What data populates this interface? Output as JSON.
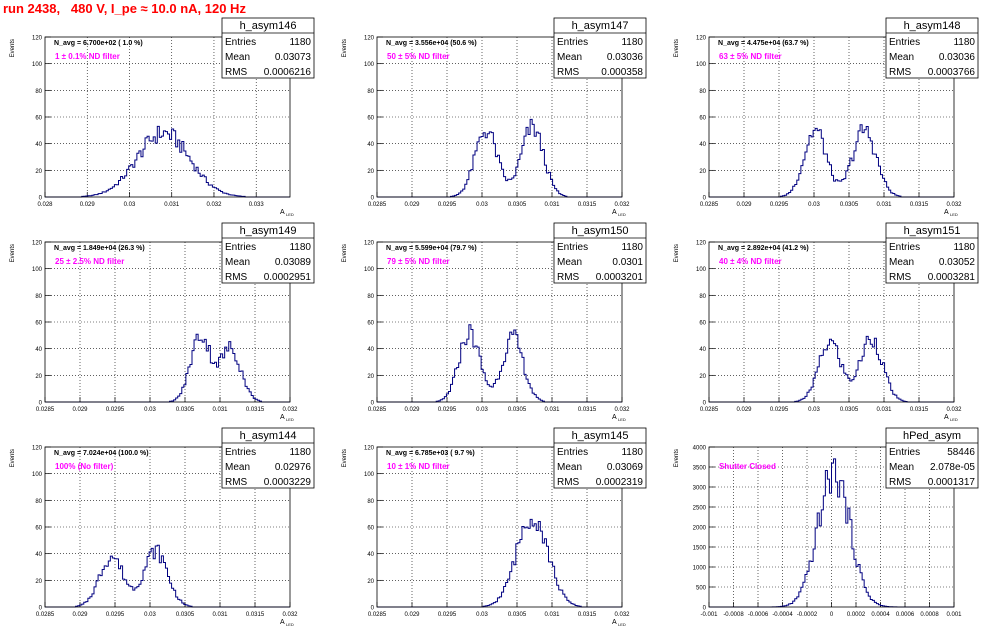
{
  "page_title": "run 2438,   480 V, I_pe ≈ 10.0 nA, 120 Hz",
  "stats_labels": {
    "entries": "Entries",
    "mean": "Mean",
    "rms": "RMS"
  },
  "chart_data": [
    {
      "type": "histogram",
      "name": "h_asym146",
      "navg_label": "N_avg = 6.700e+02 ( 1.0 %)",
      "filter_label": "1 ± 0.1% ND filter",
      "ylabel": "Events",
      "xlabel": "A_LED",
      "entries": "1180",
      "mean": "0.03073",
      "rms": "0.0006216",
      "xlim": [
        0.028,
        0.0338
      ],
      "ylim": [
        0,
        120
      ],
      "xticks": [
        "0.028",
        "0.029",
        "0.03",
        "0.031",
        "0.032",
        "0.033"
      ],
      "yticks": [
        "0",
        "20",
        "40",
        "60",
        "80",
        "100",
        "120"
      ],
      "gauss": [
        [
          0.0308,
          0.00062,
          48
        ]
      ]
    },
    {
      "type": "histogram",
      "name": "h_asym147",
      "navg_label": "N_avg = 3.556e+04 (50.6 %)",
      "filter_label": "50 ± 5% ND filter",
      "ylabel": "Events",
      "xlabel": "A_LED",
      "entries": "1180",
      "mean": "0.03036",
      "rms": "0.000358",
      "xlim": [
        0.0285,
        0.032
      ],
      "ylim": [
        0,
        120
      ],
      "xticks": [
        "0.0285",
        "0.029",
        "0.0295",
        "0.03",
        "0.0305",
        "0.031",
        "0.0315",
        "0.032"
      ],
      "yticks": [
        "0",
        "20",
        "40",
        "60",
        "80",
        "100",
        "120"
      ],
      "gauss": [
        [
          0.03006,
          0.00016,
          50
        ],
        [
          0.03072,
          0.00016,
          52
        ]
      ]
    },
    {
      "type": "histogram",
      "name": "h_asym148",
      "navg_label": "N_avg = 4.475e+04 (63.7 %)",
      "filter_label": "63 ± 5% ND filter",
      "ylabel": "Events",
      "xlabel": "A_LED",
      "entries": "1180",
      "mean": "0.03036",
      "rms": "0.0003766",
      "xlim": [
        0.0285,
        0.032
      ],
      "ylim": [
        0,
        120
      ],
      "xticks": [
        "0.0285",
        "0.029",
        "0.0295",
        "0.03",
        "0.0305",
        "0.031",
        "0.0315",
        "0.032"
      ],
      "yticks": [
        "0",
        "20",
        "40",
        "60",
        "80",
        "100",
        "120"
      ],
      "gauss": [
        [
          0.03002,
          0.00016,
          50
        ],
        [
          0.03072,
          0.00017,
          50
        ]
      ]
    },
    {
      "type": "histogram",
      "name": "h_asym149",
      "navg_label": "N_avg = 1.849e+04 (26.3 %)",
      "filter_label": "25 ± 2.5% ND filter",
      "ylabel": "Events",
      "xlabel": "A_LED",
      "entries": "1180",
      "mean": "0.03089",
      "rms": "0.0002951",
      "xlim": [
        0.0285,
        0.032
      ],
      "ylim": [
        0,
        120
      ],
      "xticks": [
        "0.0285",
        "0.029",
        "0.0295",
        "0.03",
        "0.0305",
        "0.031",
        "0.0315",
        "0.032"
      ],
      "yticks": [
        "0",
        "20",
        "40",
        "60",
        "80",
        "100",
        "120"
      ],
      "gauss": [
        [
          0.03072,
          0.00014,
          50
        ],
        [
          0.03115,
          0.00015,
          40
        ]
      ]
    },
    {
      "type": "histogram",
      "name": "h_asym150",
      "navg_label": "N_avg = 5.599e+04 (79.7 %)",
      "filter_label": "79 ± 5% ND filter",
      "ylabel": "Events",
      "xlabel": "A_LED",
      "entries": "1180",
      "mean": "0.0301",
      "rms": "0.0003201",
      "xlim": [
        0.0285,
        0.032
      ],
      "ylim": [
        0,
        120
      ],
      "xticks": [
        "0.0285",
        "0.029",
        "0.0295",
        "0.03",
        "0.0305",
        "0.031",
        "0.0315",
        "0.032"
      ],
      "yticks": [
        "0",
        "20",
        "40",
        "60",
        "80",
        "100",
        "120"
      ],
      "gauss": [
        [
          0.02982,
          0.00015,
          52
        ],
        [
          0.03044,
          0.00015,
          48
        ]
      ]
    },
    {
      "type": "histogram",
      "name": "h_asym151",
      "navg_label": "N_avg = 2.892e+04 (41.2 %)",
      "filter_label": "40 ± 4% ND filter",
      "ylabel": "Events",
      "xlabel": "A_LED",
      "entries": "1180",
      "mean": "0.03052",
      "rms": "0.0003281",
      "xlim": [
        0.0285,
        0.032
      ],
      "ylim": [
        0,
        120
      ],
      "xticks": [
        "0.0285",
        "0.029",
        "0.0295",
        "0.03",
        "0.0305",
        "0.031",
        "0.0315",
        "0.032"
      ],
      "yticks": [
        "0",
        "20",
        "40",
        "60",
        "80",
        "100",
        "120"
      ],
      "gauss": [
        [
          0.03023,
          0.00016,
          45
        ],
        [
          0.03082,
          0.00016,
          48
        ]
      ]
    },
    {
      "type": "histogram",
      "name": "h_asym144",
      "navg_label": "N_avg = 7.024e+04 (100.0 %)",
      "filter_label": "100% (No filter)",
      "ylabel": "Events",
      "xlabel": "A_LED",
      "entries": "1180",
      "mean": "0.02976",
      "rms": "0.0003229",
      "xlim": [
        0.0285,
        0.032
      ],
      "ylim": [
        0,
        120
      ],
      "xticks": [
        "0.0285",
        "0.029",
        "0.0295",
        "0.03",
        "0.0305",
        "0.031",
        "0.0315",
        "0.032"
      ],
      "yticks": [
        "0",
        "20",
        "40",
        "60",
        "80",
        "100",
        "120"
      ],
      "gauss": [
        [
          0.02945,
          0.00017,
          38
        ],
        [
          0.03008,
          0.00017,
          42
        ]
      ]
    },
    {
      "type": "histogram",
      "name": "h_asym145",
      "navg_label": "N_avg = 6.785e+03 ( 9.7 %)",
      "filter_label": "10 ± 1% ND filter",
      "ylabel": "Events",
      "xlabel": "A_LED",
      "entries": "1180",
      "mean": "0.03069",
      "rms": "0.0002319",
      "xlim": [
        0.0285,
        0.032
      ],
      "ylim": [
        0,
        120
      ],
      "xticks": [
        "0.0285",
        "0.029",
        "0.0295",
        "0.03",
        "0.0305",
        "0.031",
        "0.0315",
        "0.032"
      ],
      "yticks": [
        "0",
        "20",
        "40",
        "60",
        "80",
        "100",
        "120"
      ],
      "gauss": [
        [
          0.03072,
          0.00022,
          70
        ]
      ]
    },
    {
      "type": "histogram",
      "name": "hPed_asym",
      "navg_label": "",
      "filter_label": "Shutter Closed",
      "ylabel": "Events",
      "xlabel": "",
      "entries": "58446",
      "mean": "2.078e-05",
      "rms": "0.0001317",
      "xlim": [
        -0.001,
        0.001
      ],
      "ylim": [
        0,
        4000
      ],
      "xticks": [
        "-0.001",
        "-0.0008",
        "-0.0006",
        "-0.0004",
        "-0.0002",
        "0",
        "0.0002",
        "0.0004",
        "0.0006",
        "0.0008",
        "0.001"
      ],
      "yticks": [
        "0",
        "500",
        "1000",
        "1500",
        "2000",
        "2500",
        "3000",
        "3500",
        "4000"
      ],
      "gauss": [
        [
          2e-05,
          0.00013,
          3350
        ]
      ]
    }
  ]
}
